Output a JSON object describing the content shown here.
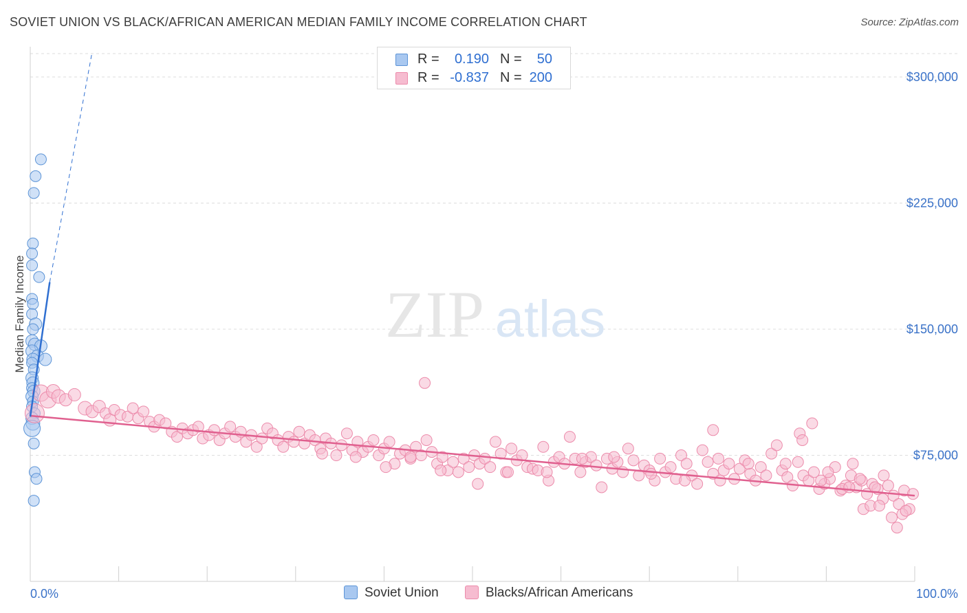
{
  "title": "SOVIET UNION VS BLACK/AFRICAN AMERICAN MEDIAN FAMILY INCOME CORRELATION CHART",
  "source": "Source: ZipAtlas.com",
  "watermark": {
    "part1": "ZIP",
    "part2": "atlas"
  },
  "legend": {
    "soviet": {
      "r_label": "R =",
      "r_value": "0.190",
      "n_label": "N =",
      "n_value": "50"
    },
    "black": {
      "r_label": "R =",
      "r_value": "-0.837",
      "n_label": "N =",
      "n_value": "200"
    }
  },
  "bottom_legend": {
    "soviet": "Soviet Union",
    "black": "Blacks/African Americans"
  },
  "colors": {
    "blue_fill": "#a9c8f0",
    "blue_stroke": "#5b93d6",
    "blue_line": "#2f6fd1",
    "pink_fill": "#f6bcd0",
    "pink_stroke": "#ec8aaa",
    "pink_line": "#e0608f",
    "axis_label_blue": "#3a72c8",
    "grid": "#dddddd"
  },
  "chart_data": {
    "type": "scatter",
    "title": "SOVIET UNION VS BLACK/AFRICAN AMERICAN MEDIAN FAMILY INCOME CORRELATION CHART",
    "xlabel": "",
    "ylabel": "Median Family Income",
    "xlim": [
      0,
      100
    ],
    "ylim": [
      0,
      318000
    ],
    "x_tick_labels": {
      "left": "0.0%",
      "right": "100.0%"
    },
    "y_ticks": [
      {
        "value": 75000,
        "label": "$75,000"
      },
      {
        "value": 150000,
        "label": "$150,000"
      },
      {
        "value": 225000,
        "label": "$225,000"
      },
      {
        "value": 300000,
        "label": "$300,000"
      }
    ],
    "series": [
      {
        "name": "Soviet Union",
        "r": 0.19,
        "n": 50,
        "trend_solid": {
          "x": [
            0,
            2.2
          ],
          "y": [
            98000,
            178000
          ]
        },
        "trend_dashed": {
          "x": [
            2.2,
            7
          ],
          "y": [
            178000,
            315000
          ]
        },
        "points": [
          [
            1.2,
            251000,
            8
          ],
          [
            0.6,
            241000,
            8
          ],
          [
            0.4,
            231000,
            8
          ],
          [
            0.3,
            201000,
            8
          ],
          [
            0.2,
            195000,
            8
          ],
          [
            0.2,
            188000,
            8
          ],
          [
            1.0,
            181000,
            8
          ],
          [
            0.2,
            168000,
            8
          ],
          [
            0.3,
            165000,
            8
          ],
          [
            0.2,
            159000,
            8
          ],
          [
            0.6,
            153000,
            9
          ],
          [
            0.3,
            150000,
            8
          ],
          [
            0.2,
            143000,
            9
          ],
          [
            0.5,
            141000,
            9
          ],
          [
            1.2,
            140000,
            9
          ],
          [
            0.2,
            137000,
            9
          ],
          [
            0.8,
            134000,
            9
          ],
          [
            0.3,
            132000,
            9
          ],
          [
            1.7,
            132000,
            9
          ],
          [
            0.2,
            130000,
            8
          ],
          [
            0.4,
            126000,
            8
          ],
          [
            0.2,
            121000,
            9
          ],
          [
            0.3,
            118000,
            9
          ],
          [
            0.2,
            115000,
            8
          ],
          [
            0.4,
            113000,
            9
          ],
          [
            0.2,
            110000,
            9
          ],
          [
            0.3,
            107000,
            8
          ],
          [
            0.2,
            104000,
            8
          ],
          [
            0.5,
            100000,
            8
          ],
          [
            0.2,
            97000,
            9
          ],
          [
            0.3,
            94000,
            10
          ],
          [
            0.2,
            91000,
            12
          ],
          [
            0.4,
            82000,
            8
          ],
          [
            0.5,
            65000,
            8
          ],
          [
            0.7,
            61000,
            8
          ],
          [
            0.4,
            48000,
            8
          ]
        ]
      },
      {
        "name": "Blacks/African Americans",
        "r": -0.837,
        "n": 200,
        "trend": {
          "x": [
            0,
            100
          ],
          "y": [
            98500,
            51000
          ]
        },
        "points": [
          [
            0.5,
            100000,
            14
          ],
          [
            1.2,
            112000,
            12
          ],
          [
            2.0,
            108000,
            12
          ],
          [
            2.6,
            113000,
            10
          ],
          [
            3.2,
            110000,
            10
          ],
          [
            4.0,
            108000,
            9
          ],
          [
            5.0,
            111000,
            9
          ],
          [
            6.2,
            103000,
            10
          ],
          [
            7.0,
            101000,
            9
          ],
          [
            7.8,
            104000,
            9
          ],
          [
            8.5,
            100000,
            8
          ],
          [
            9.0,
            96000,
            9
          ],
          [
            9.5,
            102000,
            8
          ],
          [
            10.2,
            99000,
            8
          ],
          [
            11.0,
            98000,
            8
          ],
          [
            11.6,
            103000,
            8
          ],
          [
            12.2,
            97000,
            8
          ],
          [
            12.8,
            101000,
            8
          ],
          [
            13.5,
            95000,
            8
          ],
          [
            14.0,
            92000,
            8
          ],
          [
            14.6,
            96000,
            8
          ],
          [
            15.3,
            94000,
            8
          ],
          [
            16.0,
            89000,
            8
          ],
          [
            16.6,
            86000,
            8
          ],
          [
            17.2,
            91000,
            8
          ],
          [
            17.8,
            88000,
            8
          ],
          [
            18.4,
            90000,
            8
          ],
          [
            19.0,
            92000,
            8
          ],
          [
            19.5,
            85000,
            8
          ],
          [
            20.2,
            87000,
            8
          ],
          [
            20.8,
            90000,
            8
          ],
          [
            21.4,
            84000,
            8
          ],
          [
            22.0,
            88000,
            8
          ],
          [
            22.6,
            92000,
            8
          ],
          [
            23.2,
            86000,
            8
          ],
          [
            23.8,
            89000,
            8
          ],
          [
            24.4,
            83000,
            8
          ],
          [
            25.0,
            87000,
            8
          ],
          [
            25.6,
            80000,
            8
          ],
          [
            26.2,
            85000,
            8
          ],
          [
            26.8,
            91000,
            8
          ],
          [
            27.4,
            88000,
            8
          ],
          [
            28.0,
            84000,
            8
          ],
          [
            28.6,
            80000,
            8
          ],
          [
            29.2,
            86000,
            8
          ],
          [
            29.8,
            83000,
            8
          ],
          [
            30.4,
            89000,
            8
          ],
          [
            31.0,
            82000,
            8
          ],
          [
            31.6,
            87000,
            8
          ],
          [
            32.2,
            84000,
            8
          ],
          [
            32.8,
            79000,
            8
          ],
          [
            33.4,
            85000,
            8
          ],
          [
            34.0,
            82000,
            8
          ],
          [
            34.6,
            75000,
            8
          ],
          [
            35.2,
            81000,
            8
          ],
          [
            35.8,
            88000,
            8
          ],
          [
            36.4,
            78000,
            8
          ],
          [
            37.0,
            83000,
            8
          ],
          [
            37.6,
            77000,
            8
          ],
          [
            38.2,
            80000,
            8
          ],
          [
            38.8,
            84000,
            8
          ],
          [
            39.4,
            75000,
            8
          ],
          [
            40.0,
            79000,
            8
          ],
          [
            40.6,
            83000,
            8
          ],
          [
            41.2,
            70000,
            8
          ],
          [
            41.8,
            76000,
            8
          ],
          [
            42.4,
            78000,
            8
          ],
          [
            43.0,
            73000,
            8
          ],
          [
            43.6,
            80000,
            8
          ],
          [
            44.2,
            75000,
            8
          ],
          [
            44.8,
            84000,
            8
          ],
          [
            45.4,
            77000,
            8
          ],
          [
            46.0,
            70000,
            8
          ],
          [
            46.6,
            74000,
            8
          ],
          [
            47.2,
            66000,
            8
          ],
          [
            47.8,
            71000,
            8
          ],
          [
            48.4,
            65000,
            8
          ],
          [
            49.0,
            73000,
            8
          ],
          [
            49.6,
            68000,
            8
          ],
          [
            50.2,
            75000,
            8
          ],
          [
            50.8,
            70000,
            8
          ],
          [
            51.4,
            73000,
            8
          ],
          [
            52.0,
            68000,
            8
          ],
          [
            52.6,
            83000,
            8
          ],
          [
            53.2,
            76000,
            8
          ],
          [
            53.8,
            65000,
            8
          ],
          [
            54.4,
            79000,
            8
          ],
          [
            55.0,
            72000,
            8
          ],
          [
            55.6,
            75000,
            8
          ],
          [
            56.2,
            68000,
            8
          ],
          [
            56.8,
            67000,
            8
          ],
          [
            57.4,
            66000,
            8
          ],
          [
            58.0,
            80000,
            8
          ],
          [
            58.6,
            60000,
            8
          ],
          [
            59.2,
            71000,
            8
          ],
          [
            59.8,
            74000,
            8
          ],
          [
            60.4,
            70000,
            8
          ],
          [
            61.0,
            86000,
            8
          ],
          [
            61.6,
            73000,
            8
          ],
          [
            62.2,
            65000,
            8
          ],
          [
            62.8,
            71000,
            8
          ],
          [
            63.4,
            74000,
            8
          ],
          [
            64.0,
            69000,
            8
          ],
          [
            64.6,
            56000,
            8
          ],
          [
            65.2,
            73000,
            8
          ],
          [
            65.8,
            67000,
            8
          ],
          [
            66.4,
            71000,
            8
          ],
          [
            67.0,
            65000,
            8
          ],
          [
            67.6,
            79000,
            8
          ],
          [
            68.2,
            72000,
            8
          ],
          [
            68.8,
            63000,
            8
          ],
          [
            69.4,
            69000,
            8
          ],
          [
            70.0,
            66000,
            8
          ],
          [
            70.6,
            60000,
            8
          ],
          [
            71.2,
            73000,
            8
          ],
          [
            71.8,
            65000,
            8
          ],
          [
            72.4,
            68000,
            8
          ],
          [
            73.0,
            61000,
            8
          ],
          [
            73.6,
            75000,
            8
          ],
          [
            74.2,
            70000,
            8
          ],
          [
            74.8,
            63000,
            8
          ],
          [
            75.4,
            58000,
            8
          ],
          [
            76.0,
            78000,
            8
          ],
          [
            76.6,
            71000,
            8
          ],
          [
            77.2,
            64000,
            8
          ],
          [
            77.8,
            73000,
            8
          ],
          [
            78.4,
            66000,
            8
          ],
          [
            79.0,
            70000,
            8
          ],
          [
            79.6,
            61000,
            8
          ],
          [
            80.2,
            67000,
            8
          ],
          [
            80.8,
            72000,
            8
          ],
          [
            81.4,
            64000,
            8
          ],
          [
            82.0,
            60000,
            8
          ],
          [
            82.6,
            68000,
            8
          ],
          [
            83.2,
            63000,
            8
          ],
          [
            83.8,
            76000,
            8
          ],
          [
            84.4,
            81000,
            8
          ],
          [
            85.0,
            66000,
            8
          ],
          [
            85.6,
            62000,
            8
          ],
          [
            86.2,
            57000,
            8
          ],
          [
            86.8,
            71000,
            8
          ],
          [
            87.4,
            63000,
            8
          ],
          [
            88.0,
            60000,
            8
          ],
          [
            88.6,
            65000,
            8
          ],
          [
            89.2,
            55000,
            8
          ],
          [
            89.8,
            58000,
            8
          ],
          [
            90.4,
            61000,
            8
          ],
          [
            91.0,
            68000,
            8
          ],
          [
            91.6,
            54000,
            8
          ],
          [
            92.2,
            57000,
            8
          ],
          [
            92.8,
            63000,
            8
          ],
          [
            93.4,
            56000,
            8
          ],
          [
            94.0,
            60000,
            8
          ],
          [
            94.6,
            52000,
            8
          ],
          [
            95.2,
            58000,
            8
          ],
          [
            95.8,
            55000,
            8
          ],
          [
            96.4,
            49000,
            8
          ],
          [
            97.0,
            57000,
            8
          ],
          [
            97.6,
            51000,
            8
          ],
          [
            98.2,
            46000,
            8
          ],
          [
            98.8,
            54000,
            8
          ],
          [
            99.4,
            43000,
            8
          ],
          [
            99.8,
            52000,
            8
          ],
          [
            44.6,
            118000,
            8
          ],
          [
            77.2,
            90000,
            8
          ],
          [
            87.0,
            88000,
            8
          ],
          [
            87.3,
            84000,
            8
          ],
          [
            88.4,
            94000,
            8
          ],
          [
            93.0,
            70000,
            8
          ],
          [
            90.2,
            65000,
            8
          ],
          [
            91.8,
            55000,
            8
          ],
          [
            94.2,
            43000,
            8
          ],
          [
            95.0,
            45000,
            8
          ],
          [
            96.0,
            45000,
            8
          ],
          [
            97.4,
            38000,
            8
          ],
          [
            98.0,
            32000,
            8
          ],
          [
            98.6,
            40000,
            8
          ],
          [
            99.0,
            42000,
            8
          ],
          [
            96.5,
            63000,
            8
          ],
          [
            95.5,
            56000,
            8
          ],
          [
            93.8,
            61000,
            8
          ],
          [
            92.6,
            56000,
            8
          ],
          [
            89.4,
            60000,
            8
          ],
          [
            85.4,
            70000,
            8
          ],
          [
            81.2,
            70000,
            8
          ],
          [
            78.0,
            60000,
            8
          ],
          [
            74.0,
            60000,
            8
          ],
          [
            70.2,
            64000,
            8
          ],
          [
            66.0,
            74000,
            8
          ],
          [
            62.4,
            73000,
            8
          ],
          [
            58.4,
            65000,
            8
          ],
          [
            54.0,
            65000,
            8
          ],
          [
            50.6,
            58000,
            8
          ],
          [
            46.4,
            66000,
            8
          ],
          [
            43.0,
            74000,
            8
          ],
          [
            40.2,
            68000,
            8
          ],
          [
            36.8,
            74000,
            8
          ],
          [
            33.0,
            76000,
            8
          ]
        ]
      }
    ]
  }
}
